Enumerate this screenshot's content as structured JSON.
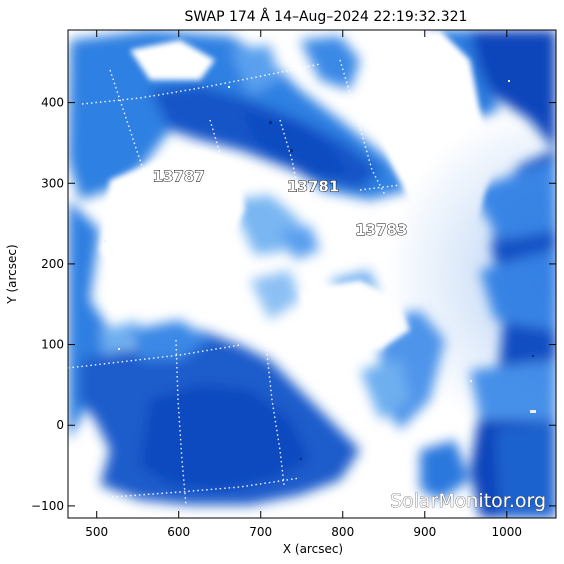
{
  "title": "SWAP 174 Å 14–Aug–2024 22:19:32.321",
  "axes": {
    "x": {
      "label": "X (arcsec)",
      "range": [
        465,
        1060
      ],
      "ticks": [
        500,
        600,
        700,
        800,
        900,
        1000
      ],
      "tick_labels": [
        "500",
        "600",
        "700",
        "800",
        "900",
        "1000"
      ]
    },
    "y": {
      "label": "Y (arcsec)",
      "range": [
        -115,
        490
      ],
      "ticks": [
        -100,
        0,
        100,
        200,
        300,
        400
      ],
      "tick_labels": [
        "−100",
        "0",
        "100",
        "200",
        "300",
        "400"
      ]
    }
  },
  "regions": [
    {
      "label": "13787",
      "x": 600,
      "y": 302
    },
    {
      "label": "13781",
      "x": 764,
      "y": 290
    },
    {
      "label": "13783",
      "x": 847,
      "y": 236
    }
  ],
  "watermark": "SolarMonitor.org",
  "colors": {
    "deep_blue": "#0a46be",
    "mid_blue": "#2a7ae0",
    "light_blue": "#8fc0f4",
    "saturated": "#ffffff"
  }
}
